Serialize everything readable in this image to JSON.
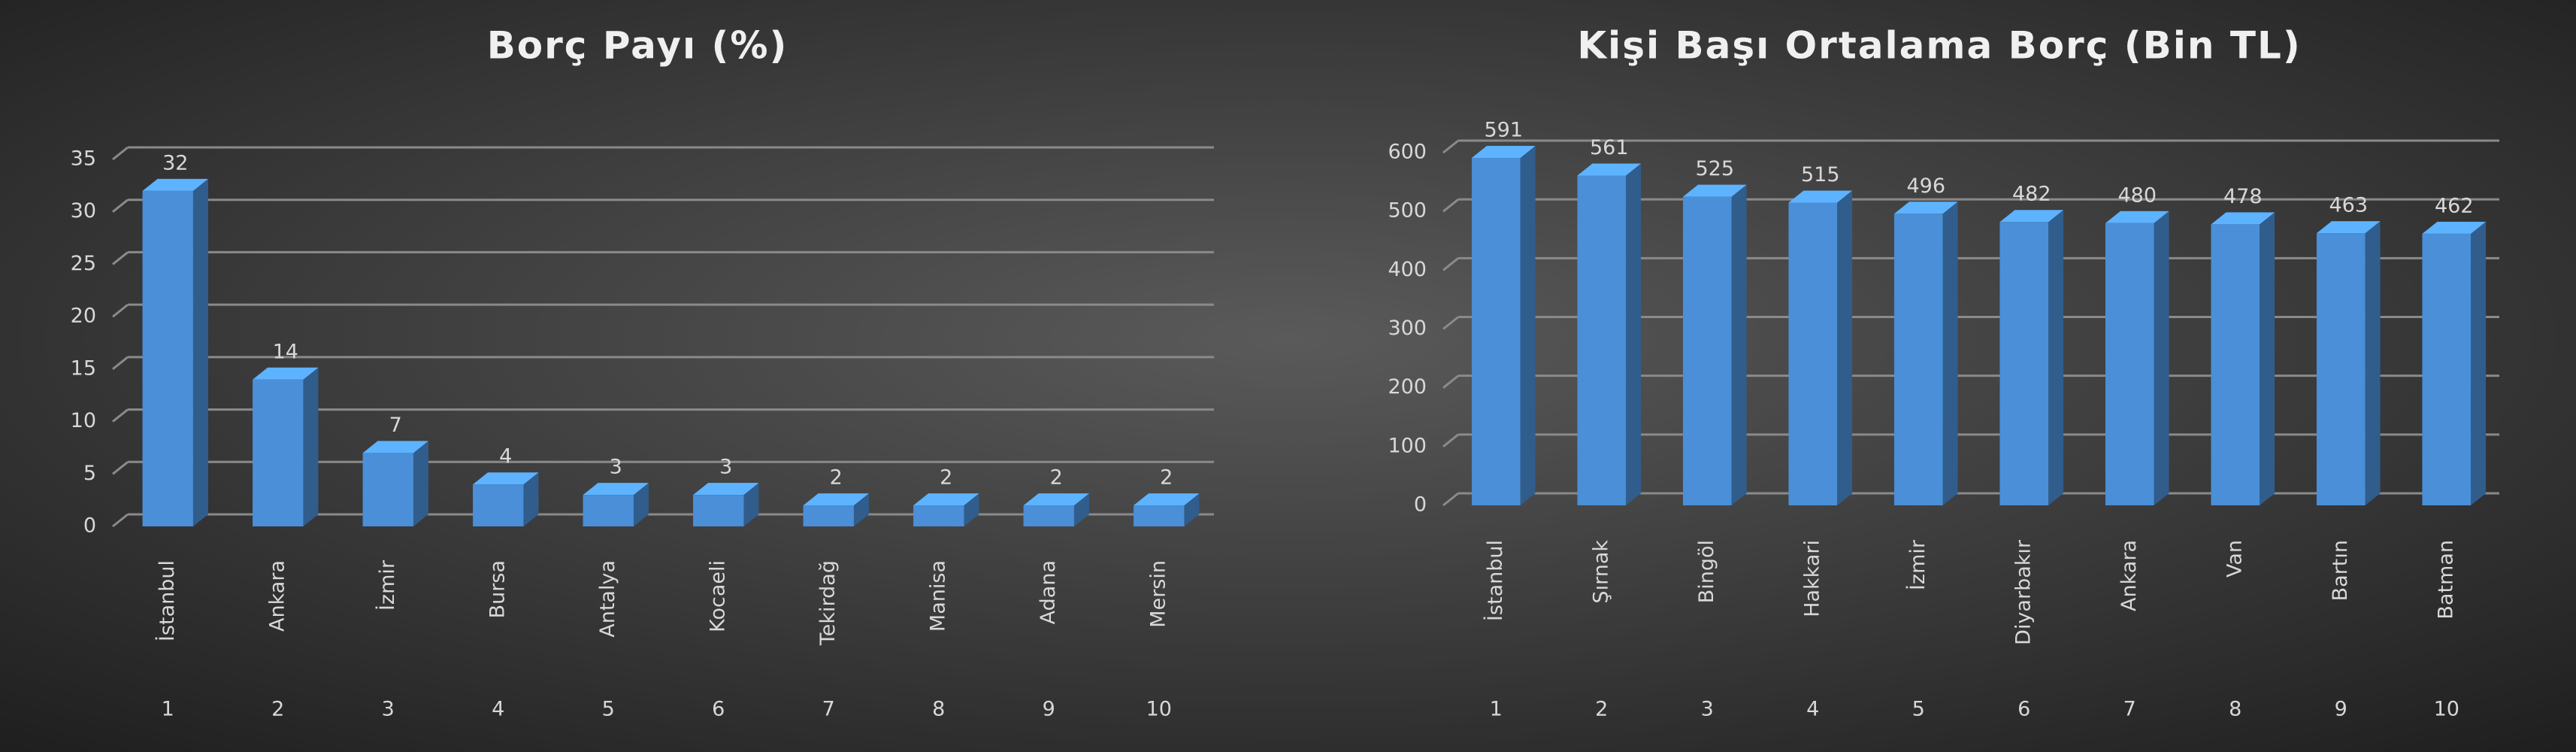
{
  "chart_data": [
    {
      "type": "bar",
      "title": "Borç Payı (%)",
      "categories": [
        "İstanbul",
        "Ankara",
        "İzmir",
        "Bursa",
        "Antalya",
        "Kocaeli",
        "Tekirdağ",
        "Manisa",
        "Adana",
        "Mersin"
      ],
      "ranks": [
        1,
        2,
        3,
        4,
        5,
        6,
        7,
        8,
        9,
        10
      ],
      "values": [
        32,
        14,
        7,
        4,
        3,
        3,
        2,
        2,
        2,
        2
      ],
      "color": "#4a8fd8",
      "ylim": [
        0,
        35
      ],
      "yticks": [
        0,
        5,
        10,
        15,
        20,
        25,
        30,
        35
      ],
      "grid": true
    },
    {
      "type": "bar",
      "title": "Kişi Başı Ortalama Borç (Bin TL)",
      "categories": [
        "İstanbul",
        "Şırnak",
        "Bingöl",
        "Hakkari",
        "İzmir",
        "Diyarbakır",
        "Ankara",
        "Van",
        "Bartın",
        "Batman"
      ],
      "ranks": [
        1,
        2,
        3,
        4,
        5,
        6,
        7,
        8,
        9,
        10
      ],
      "values": [
        591,
        561,
        525,
        515,
        496,
        482,
        480,
        478,
        463,
        462
      ],
      "color": "#4a8fd8",
      "ylim": [
        0,
        600
      ],
      "yticks": [
        0,
        100,
        200,
        300,
        400,
        500,
        600
      ],
      "grid": true
    }
  ]
}
